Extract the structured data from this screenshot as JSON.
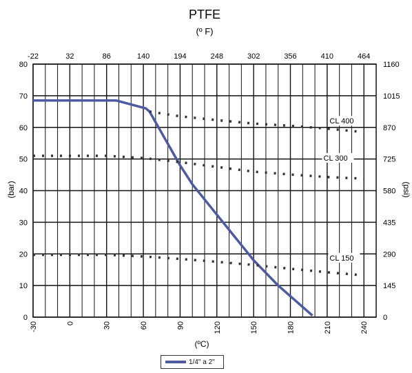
{
  "chart_data": {
    "type": "line",
    "title": "PTFE",
    "top_axis_label": "(º F)",
    "xlabel": "(ºC)",
    "ylabel_left": "(bar)",
    "ylabel_right": "(psi)",
    "xlim": [
      -30,
      250
    ],
    "ylim": [
      0,
      80
    ],
    "x_ticks": [
      -30,
      0,
      30,
      60,
      90,
      120,
      150,
      180,
      210,
      240
    ],
    "y_ticks": [
      0,
      10,
      20,
      30,
      40,
      50,
      60,
      70,
      80
    ],
    "top_ticks": [
      {
        "c": -30,
        "label": "-22"
      },
      {
        "c": 0,
        "label": "32"
      },
      {
        "c": 30,
        "label": "86"
      },
      {
        "c": 60,
        "label": "140"
      },
      {
        "c": 90,
        "label": "194"
      },
      {
        "c": 120,
        "label": "248"
      },
      {
        "c": 150,
        "label": "302"
      },
      {
        "c": 180,
        "label": "356"
      },
      {
        "c": 210,
        "label": "410"
      },
      {
        "c": 240,
        "label": "464"
      }
    ],
    "right_ticks": [
      {
        "bar": 0,
        "label": "0"
      },
      {
        "bar": 10,
        "label": "145"
      },
      {
        "bar": 20,
        "label": "290"
      },
      {
        "bar": 30,
        "label": "435"
      },
      {
        "bar": 40,
        "label": "580"
      },
      {
        "bar": 50,
        "label": "725"
      },
      {
        "bar": 60,
        "label": "870"
      },
      {
        "bar": 70,
        "label": "1015"
      },
      {
        "bar": 80,
        "label": "1160"
      }
    ],
    "grid": true,
    "series": [
      {
        "name": "1/4\" a 2\"",
        "style": "solid",
        "color": "#4b5aa3",
        "x": [
          -30,
          38,
          62,
          65,
          90,
          100,
          150,
          170,
          198
        ],
        "y": [
          68.5,
          68.5,
          66,
          65,
          48,
          42,
          18,
          10,
          0.5
        ]
      },
      {
        "name": "CL 400",
        "style": "dotted",
        "color": "#333333",
        "x": [
          65,
          90,
          120,
          150,
          180,
          210,
          240
        ],
        "y": [
          65,
          63.5,
          62.3,
          61.2,
          60.5,
          59.6,
          58.5
        ]
      },
      {
        "name": "CL 300",
        "style": "dotted",
        "color": "#333333",
        "x": [
          -30,
          30,
          60,
          90,
          120,
          150,
          180,
          210,
          240
        ],
        "y": [
          51,
          51,
          50.3,
          49,
          47.5,
          46,
          45.1,
          44.3,
          43.8
        ]
      },
      {
        "name": "CL 150",
        "style": "dotted",
        "color": "#333333",
        "x": [
          -30,
          30,
          60,
          90,
          120,
          150,
          180,
          210,
          240
        ],
        "y": [
          19.7,
          19.7,
          19.2,
          18.4,
          17.5,
          16.5,
          15.3,
          14.2,
          13.2
        ]
      }
    ],
    "class_labels": [
      {
        "text": "CL 400",
        "c": 212,
        "bar": 61.2
      },
      {
        "text": "CL 300",
        "c": 207,
        "bar": 49.5
      },
      {
        "text": "CL 150",
        "c": 212,
        "bar": 17.9
      }
    ],
    "legend": {
      "placement": "bottom-center",
      "label": "1/4\" a 2\""
    }
  }
}
